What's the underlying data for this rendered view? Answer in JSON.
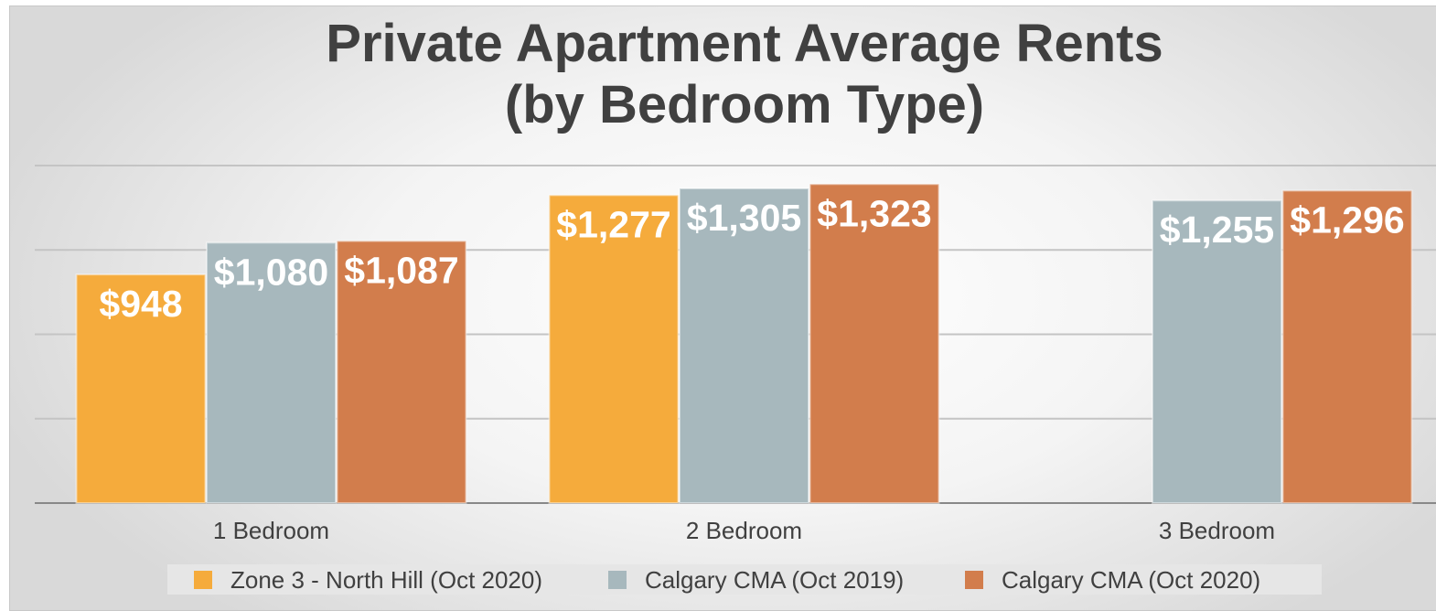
{
  "chart_data": {
    "type": "bar",
    "title": "Private Apartment Average Rents\n(by Bedroom Type)",
    "categories": [
      "1 Bedroom",
      "2 Bedroom",
      "3 Bedroom"
    ],
    "series": [
      {
        "name": "Zone 3 - North Hill (Oct 2020)",
        "color": "#f5ab3c",
        "values": [
          948,
          1277,
          null
        ],
        "value_labels": [
          "$948",
          "$1,277",
          null
        ]
      },
      {
        "name": "Calgary CMA (Oct 2019)",
        "color": "#a7b8bd",
        "values": [
          1080,
          1305,
          1255
        ],
        "value_labels": [
          "$1,080",
          "$1,305",
          "$1,255"
        ]
      },
      {
        "name": "Calgary CMA (Oct 2020)",
        "color": "#d27d4c",
        "values": [
          1087,
          1323,
          1296
        ],
        "value_labels": [
          "$1,087",
          "$1,323",
          "$1,296"
        ]
      }
    ],
    "ylim": [
      0,
      1400
    ],
    "yticks": [
      0,
      350,
      700,
      1050,
      1400
    ],
    "grid": true,
    "legend": "bottom"
  }
}
